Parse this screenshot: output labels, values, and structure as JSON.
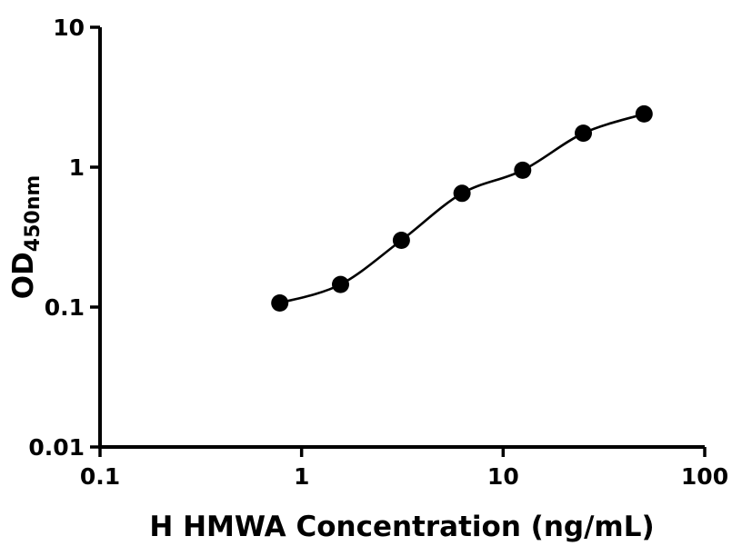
{
  "chart_data": {
    "type": "scatter",
    "xlabel": "H HMWA Concentration (ng/mL)",
    "ylabel_main": "OD",
    "ylabel_sub": "450nm",
    "x_scale": "log",
    "y_scale": "log",
    "xlim": [
      0.1,
      100
    ],
    "ylim": [
      0.01,
      10
    ],
    "x_ticks": [
      0.1,
      1,
      10,
      100
    ],
    "x_tick_labels": [
      "0.1",
      "1",
      "10",
      "100"
    ],
    "y_ticks": [
      10,
      1,
      0.1,
      0.01
    ],
    "y_tick_labels": [
      "10",
      "1",
      "0.1",
      "0.01"
    ],
    "x": [
      0.78,
      1.56,
      3.125,
      6.25,
      12.5,
      25,
      50
    ],
    "y": [
      0.107,
      0.145,
      0.3,
      0.65,
      0.95,
      1.75,
      2.4
    ],
    "grid": false,
    "legend": null,
    "curve": "smooth-fit-through-points",
    "marker_shape": "filled-circle",
    "marker_color": "#000000",
    "line_color": "#000000",
    "axis_color": "#000000",
    "background_color": "#ffffff"
  }
}
